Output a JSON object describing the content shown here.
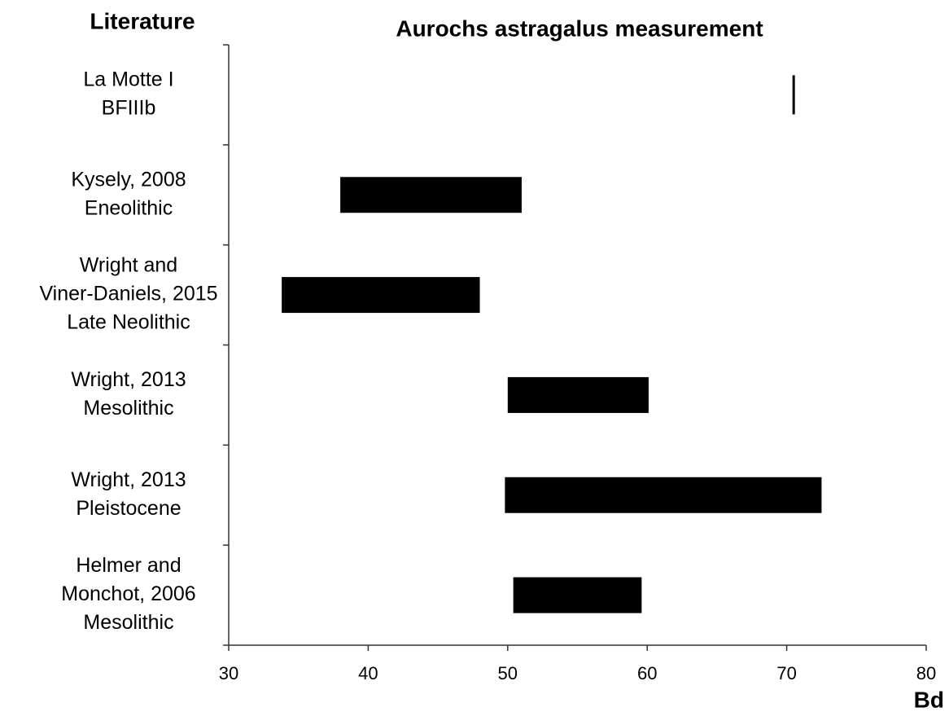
{
  "chart_data": {
    "type": "range_bar",
    "title": "Aurochs astragalus measurement",
    "y_axis_label": "Literature",
    "x_axis_label": "Bd",
    "categories": [
      [
        "La Motte I",
        "BFIIIb"
      ],
      [
        "Kysely, 2008",
        "Eneolithic"
      ],
      [
        "Wright and",
        "Viner-Daniels, 2015",
        "Late Neolithic"
      ],
      [
        "Wright, 2013",
        "Mesolithic"
      ],
      [
        "Wright, 2013",
        "Pleistocene"
      ],
      [
        "Helmer and",
        "Monchot, 2006",
        "Mesolithic"
      ]
    ],
    "low": [
      70.5,
      38,
      33.8,
      50,
      49.8,
      50.4
    ],
    "high": [
      70.5,
      51,
      48,
      60.1,
      72.5,
      59.6
    ],
    "color": "#000000",
    "xlim": [
      30,
      80
    ],
    "xticks": [
      30,
      40,
      50,
      60,
      70,
      80
    ]
  }
}
